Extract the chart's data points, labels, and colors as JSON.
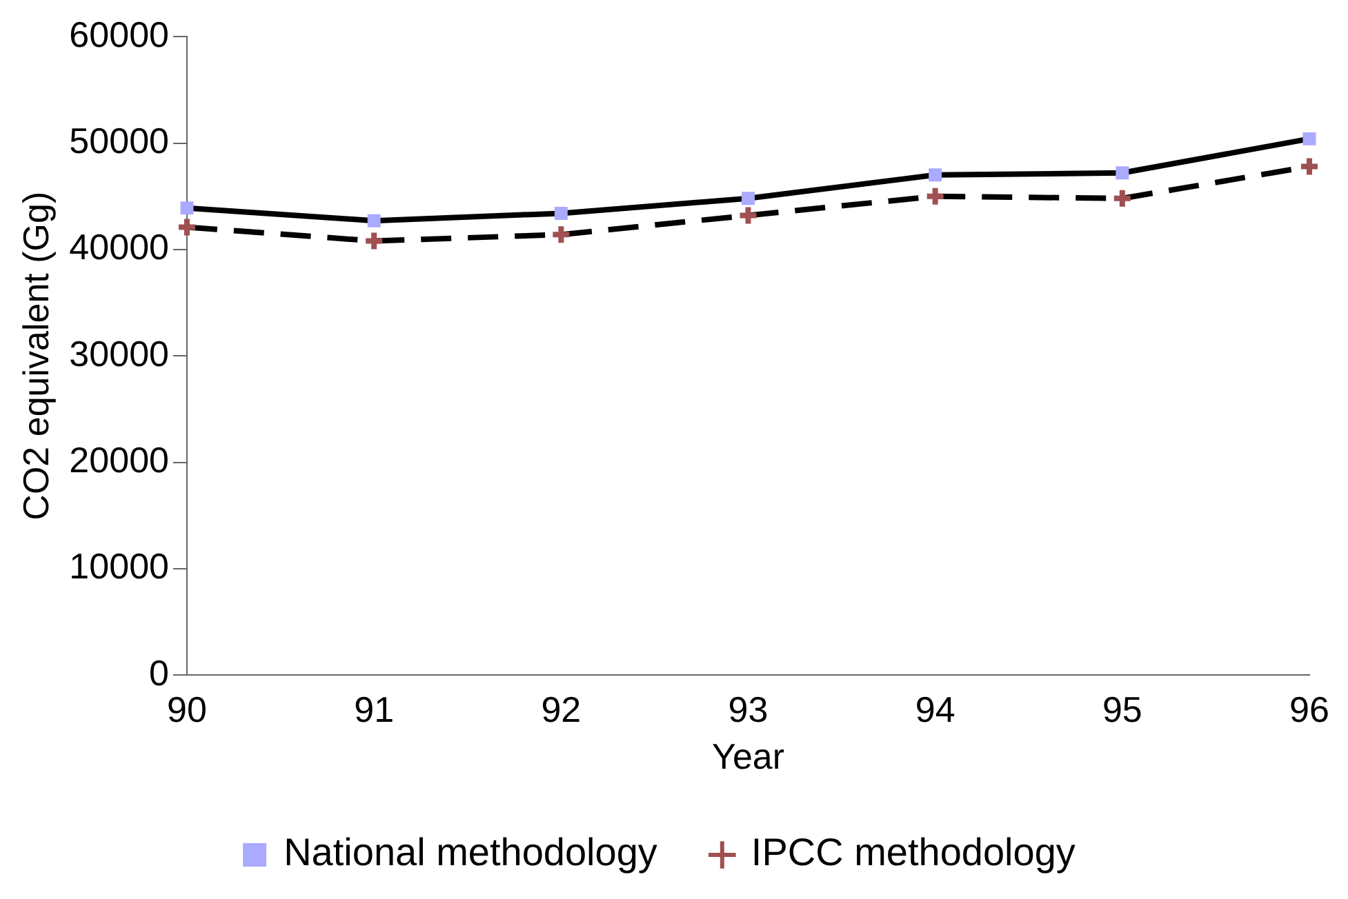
{
  "chart_data": {
    "type": "line",
    "xlabel": "Year",
    "ylabel": "CO2 equivalent (Gg)",
    "categories": [
      "90",
      "91",
      "92",
      "93",
      "94",
      "95",
      "96"
    ],
    "series": [
      {
        "name": "National methodology",
        "color": "#000000",
        "colors": [
          "#aaaaff",
          "#aaaaff",
          "#aaaaff",
          "#aaaaff",
          "#aaaaff",
          "#aaaaff",
          "#aaaaff"
        ],
        "marker": "square",
        "line_style": "solid",
        "values": [
          43900,
          42700,
          43400,
          44800,
          47000,
          47200,
          50400
        ]
      },
      {
        "name": "IPCC methodology",
        "color": "#000000",
        "colors": [
          "#a05050",
          "#a05050",
          "#a05050",
          "#a05050",
          "#a05050",
          "#a05050",
          "#a05050"
        ],
        "marker": "cross",
        "line_style": "dashed",
        "values": [
          42100,
          40800,
          41400,
          43200,
          45000,
          44800,
          47800
        ]
      }
    ],
    "ylim": [
      0,
      60000
    ],
    "yticks": [
      0,
      10000,
      20000,
      30000,
      40000,
      50000,
      60000
    ],
    "grid": false,
    "legend": "bottom"
  }
}
